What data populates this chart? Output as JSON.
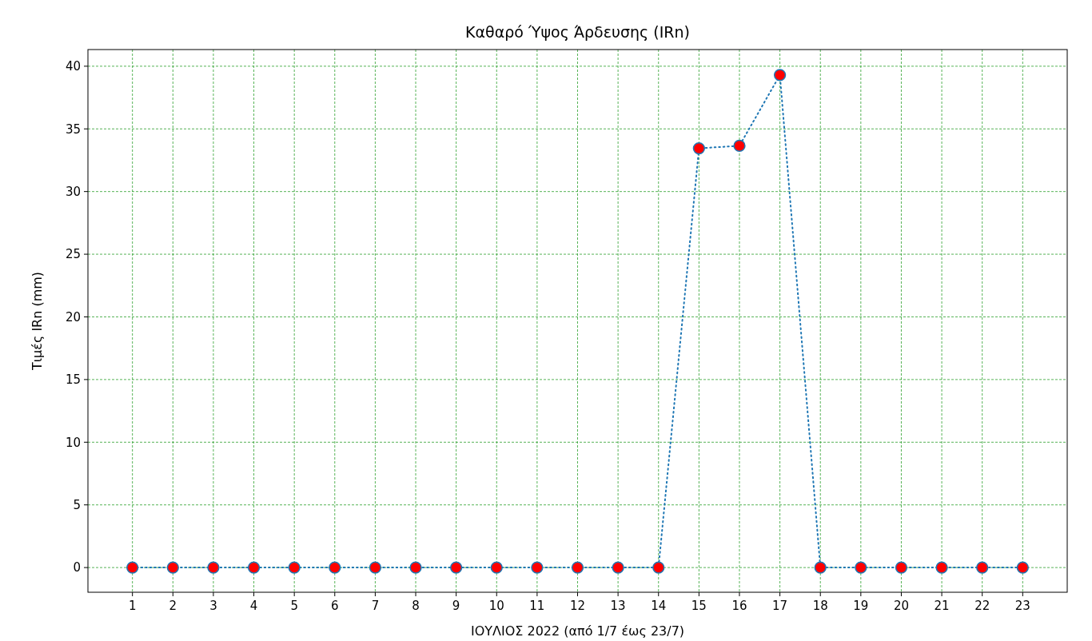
{
  "chart_data": {
    "type": "line",
    "title": "Καθαρό Ύψος Άρδευσης (IRn)",
    "xlabel": "ΙΟΥΛΙΟΣ 2022 (από 1/7 έως 23/7)",
    "ylabel": "Τιμές IRn (mm)",
    "x": [
      1,
      2,
      3,
      4,
      5,
      6,
      7,
      8,
      9,
      10,
      11,
      12,
      13,
      14,
      15,
      16,
      17,
      18,
      19,
      20,
      21,
      22,
      23
    ],
    "series": [
      {
        "color": "#1f77b4",
        "colors": [
          "#ff0000",
          "#ff0000",
          "#ff0000",
          "#ff0000",
          "#ff0000",
          "#ff0000",
          "#ff0000",
          "#ff0000",
          "#ff0000",
          "#ff0000",
          "#ff0000",
          "#ff0000",
          "#ff0000",
          "#ff0000",
          "#ff0000",
          "#ff0000",
          "#ff0000",
          "#ff0000",
          "#ff0000",
          "#ff0000",
          "#ff0000",
          "#ff0000",
          "#ff0000"
        ],
        "values": [
          0,
          0,
          0,
          0,
          0,
          0,
          0,
          0,
          0,
          0,
          0,
          0,
          0,
          0,
          33.45,
          33.65,
          39.3,
          0,
          0,
          0,
          0,
          0,
          0
        ]
      }
    ],
    "xlim": [
      -0.1,
      24.1
    ],
    "xticks": [
      1,
      2,
      3,
      4,
      5,
      6,
      7,
      8,
      9,
      10,
      11,
      12,
      13,
      14,
      15,
      16,
      17,
      18,
      19,
      20,
      21,
      22,
      23
    ],
    "ylim": [
      -1.97,
      41.33
    ],
    "yticks": [
      0,
      5,
      10,
      15,
      20,
      25,
      30,
      35,
      40
    ],
    "grid": true,
    "marker": "circle",
    "line_style": "dotted"
  }
}
